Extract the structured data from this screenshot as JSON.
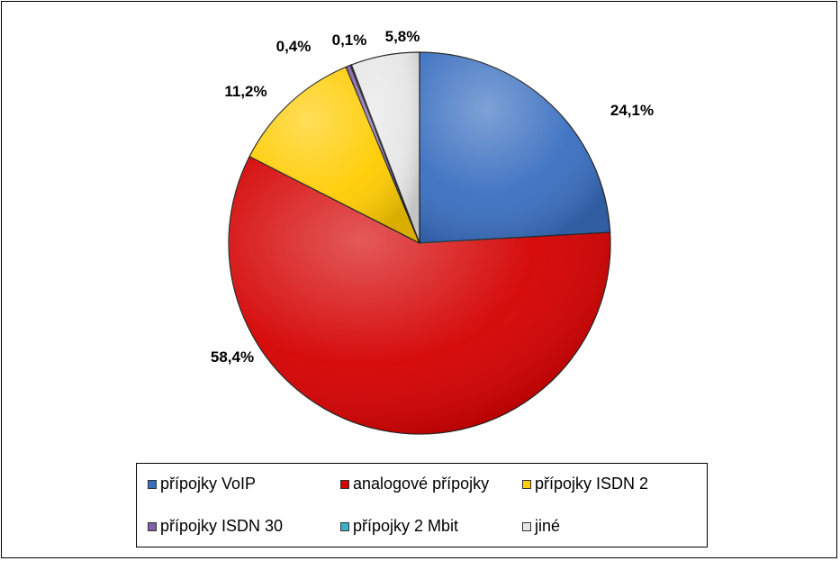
{
  "chart_data": {
    "type": "pie",
    "title": "",
    "categories": [
      "přípojky VoIP",
      "analogové přípojky",
      "přípojky ISDN 2",
      "přípojky ISDN 30",
      "přípojky 2 Mbit",
      "jiné"
    ],
    "values": [
      24.1,
      58.4,
      11.2,
      0.4,
      0.1,
      5.8
    ],
    "data_labels": [
      "24,1%",
      "58,4%",
      "11,2%",
      "0,4%",
      "0,1%",
      "5,8%"
    ],
    "colors": [
      "#3a6fc0",
      "#d40000",
      "#ffcc00",
      "#8060a8",
      "#40b0c8",
      "#e6e6e6"
    ],
    "start_angle_deg": 0,
    "direction": "clockwise",
    "legend_position": "bottom"
  }
}
